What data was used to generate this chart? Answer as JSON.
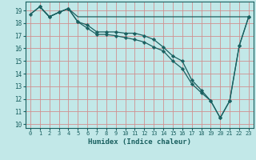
{
  "xlabel": "Humidex (Indice chaleur)",
  "background_color": "#c2e8e8",
  "grid_color_major": "#d09090",
  "grid_color_minor": "#d8b0b0",
  "line_color": "#1a6060",
  "xlim": [
    -0.5,
    23.5
  ],
  "ylim": [
    9.7,
    19.7
  ],
  "yticks": [
    10,
    11,
    12,
    13,
    14,
    15,
    16,
    17,
    18,
    19
  ],
  "xticks": [
    0,
    1,
    2,
    3,
    4,
    5,
    6,
    7,
    8,
    9,
    10,
    11,
    12,
    13,
    14,
    15,
    16,
    17,
    18,
    19,
    20,
    21,
    22,
    23
  ],
  "line1_x": [
    0,
    1,
    2,
    3,
    4,
    5,
    6,
    7,
    8,
    9,
    10,
    11,
    12,
    13,
    14,
    15,
    16,
    17,
    18,
    19,
    20,
    21,
    22,
    23
  ],
  "line1_y": [
    18.7,
    19.3,
    18.5,
    18.85,
    19.15,
    18.5,
    18.5,
    18.5,
    18.5,
    18.5,
    18.5,
    18.5,
    18.5,
    18.5,
    18.5,
    18.5,
    18.5,
    18.5,
    18.5,
    18.5,
    18.5,
    18.5,
    18.5,
    18.5
  ],
  "line2_x": [
    0,
    1,
    2,
    3,
    4,
    5,
    6,
    7,
    8,
    9,
    10,
    11,
    12,
    13,
    14,
    15,
    16,
    17,
    18,
    19,
    20,
    21,
    22,
    23
  ],
  "line2_y": [
    18.7,
    19.3,
    18.5,
    18.85,
    19.15,
    18.1,
    17.85,
    17.3,
    17.3,
    17.3,
    17.2,
    17.2,
    17.0,
    16.7,
    16.1,
    15.4,
    15.0,
    13.5,
    12.7,
    11.85,
    10.5,
    11.85,
    16.2,
    18.5
  ],
  "line3_x": [
    1,
    2,
    3,
    4,
    5,
    6,
    7,
    8,
    9,
    10,
    11,
    12,
    13,
    14,
    15,
    16,
    17,
    18,
    19,
    20,
    21,
    22,
    23
  ],
  "line3_y": [
    19.3,
    18.5,
    18.85,
    19.15,
    18.1,
    17.6,
    17.1,
    17.1,
    17.0,
    16.85,
    16.7,
    16.5,
    16.1,
    15.8,
    15.0,
    14.4,
    13.2,
    12.5,
    11.85,
    10.5,
    11.85,
    16.2,
    18.5
  ]
}
